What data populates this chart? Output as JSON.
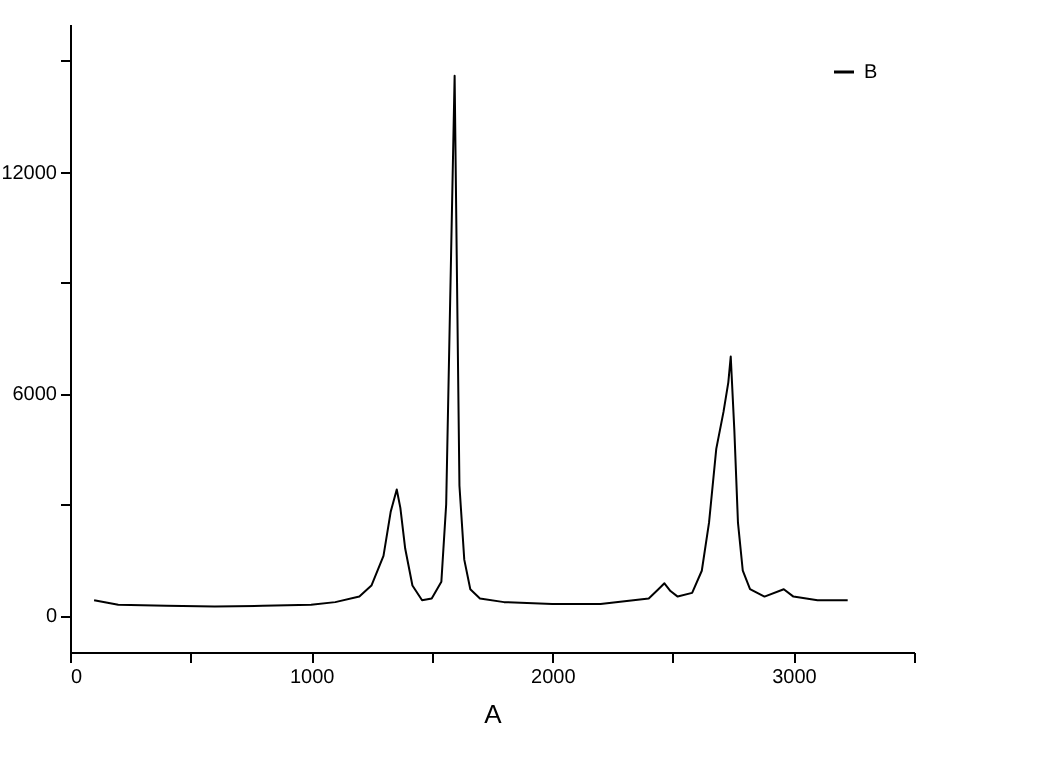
{
  "chart_data": {
    "type": "line",
    "xlabel": "A",
    "xlim": [
      0,
      3500
    ],
    "ylim": [
      -1000,
      16000
    ],
    "xticks": [
      0,
      {
        "value": 500,
        "label": null
      },
      1000,
      {
        "value": 1500,
        "label": null
      },
      2000,
      {
        "value": 2500,
        "label": null
      },
      3000,
      {
        "value": 3500,
        "label": null
      }
    ],
    "yticks": [
      0,
      {
        "value": 3000,
        "label": null
      },
      6000,
      {
        "value": 9000,
        "label": null
      },
      12000,
      {
        "value": 15000,
        "label": null
      }
    ],
    "grid": false,
    "legend": "top right",
    "marker": "none",
    "line_style": "solid",
    "x": [
      100,
      200,
      400,
      600,
      800,
      1000,
      1100,
      1200,
      1250,
      1300,
      1330,
      1355,
      1370,
      1390,
      1420,
      1460,
      1500,
      1540,
      1560,
      1575,
      1595,
      1605,
      1615,
      1635,
      1660,
      1700,
      1800,
      2000,
      2200,
      2400,
      2440,
      2465,
      2490,
      2520,
      2580,
      2620,
      2650,
      2680,
      2710,
      2730,
      2740,
      2755,
      2770,
      2790,
      2820,
      2880,
      2960,
      3000,
      3100,
      3225
    ],
    "series": [
      {
        "name": "B",
        "color": "#000000",
        "values": [
          400,
          280,
          250,
          230,
          250,
          280,
          350,
          500,
          800,
          1600,
          2800,
          3400,
          2900,
          1800,
          800,
          400,
          450,
          900,
          3000,
          8000,
          14600,
          9000,
          3500,
          1500,
          700,
          450,
          350,
          300,
          300,
          450,
          700,
          860,
          650,
          500,
          600,
          1200,
          2500,
          4500,
          5500,
          6300,
          7000,
          5000,
          2500,
          1200,
          700,
          500,
          700,
          500,
          400,
          400
        ]
      }
    ]
  }
}
